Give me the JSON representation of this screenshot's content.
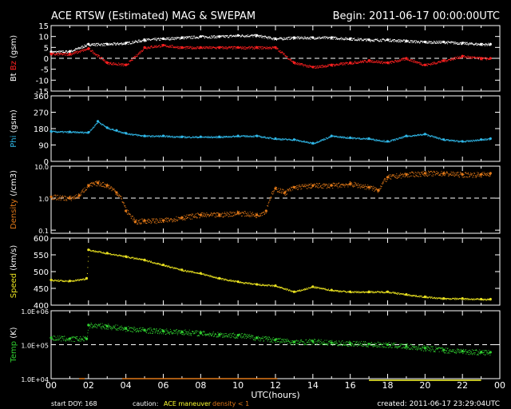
{
  "title": "ACE RTSW (Estimated) MAG & SWEPAM",
  "begin_label": "Begin: 2011-06-17 00:00:00UTC",
  "x_axis_label": "UTC(hours)",
  "footer": {
    "start_doy": "start DOY: 168",
    "caution_label": "caution:",
    "maneuver_label": "ACE maneuver",
    "density_label": "density < 1",
    "created": "created: 2011-06-17 23:29:04UTC"
  },
  "colors": {
    "bt": "#ffffff",
    "bz": "#ff2020",
    "phi": "#30b8e8",
    "density": "#e07818",
    "speed": "#e8e020",
    "temp": "#30d030",
    "maneuver": "#ffff30",
    "density_flag": "#e07818"
  },
  "chart_data": [
    {
      "type": "line",
      "ylabel_parts": [
        "Bt",
        "Bz",
        "(gsm)"
      ],
      "ylim": [
        -15,
        15
      ],
      "yticks": [
        "15",
        "10",
        "5",
        "0",
        "-5",
        "-10",
        "-15"
      ],
      "dashed_reference": 0,
      "xlim": [
        0,
        24
      ],
      "x": [
        0,
        1,
        2,
        3,
        4,
        5,
        6,
        7,
        8,
        9,
        10,
        11,
        12,
        13,
        14,
        15,
        16,
        17,
        18,
        19,
        20,
        21,
        22,
        23,
        23.5
      ],
      "series": [
        {
          "name": "Bt",
          "color_key": "bt",
          "values": [
            3,
            3.2,
            6.5,
            6.5,
            7,
            8.5,
            9,
            9.5,
            10,
            10,
            10.5,
            10.5,
            9,
            9.5,
            9.5,
            9.5,
            9,
            8.5,
            8.5,
            8,
            7.5,
            7.5,
            7,
            6.5,
            6.5
          ]
        },
        {
          "name": "Bz",
          "color_key": "bz",
          "values": [
            2,
            2,
            4.5,
            -2,
            -3,
            5,
            6,
            5,
            5,
            5,
            5,
            5,
            5,
            -2,
            -4,
            -3,
            -2,
            -1,
            -2,
            0,
            -3,
            -1,
            1,
            0,
            0
          ]
        }
      ]
    },
    {
      "type": "scatter",
      "ylabel_parts": [
        "Phi",
        "(gsm)"
      ],
      "ylim": [
        0,
        360
      ],
      "yticks": [
        "360",
        "270",
        "180",
        "90",
        "0"
      ],
      "xlim": [
        0,
        24
      ],
      "x": [
        0,
        1,
        2,
        2.5,
        3,
        3.5,
        4,
        5,
        6,
        7,
        8,
        9,
        10,
        11,
        12,
        13,
        14,
        15,
        16,
        17,
        18,
        19,
        20,
        21,
        22,
        23,
        23.5
      ],
      "series": [
        {
          "name": "Phi",
          "color_key": "phi",
          "values": [
            165,
            162,
            160,
            220,
            185,
            170,
            155,
            140,
            140,
            135,
            135,
            135,
            140,
            140,
            125,
            120,
            100,
            140,
            130,
            125,
            110,
            140,
            150,
            120,
            110,
            120,
            125
          ]
        }
      ]
    },
    {
      "type": "scatter",
      "ylabel_parts": [
        "Density",
        "(/cm3)"
      ],
      "log_scale": true,
      "ylim": [
        0.08,
        10
      ],
      "yticks": [
        "10.0",
        "1.0",
        "0.1"
      ],
      "dashed_reference": 1.0,
      "xlim": [
        0,
        24
      ],
      "x": [
        0,
        1,
        1.5,
        2,
        2.5,
        3,
        3.5,
        4,
        4.5,
        5,
        6,
        7,
        8,
        9,
        10,
        11,
        11.5,
        12,
        12.5,
        13,
        14,
        15,
        16,
        17,
        17.5,
        18,
        19,
        20,
        21,
        22,
        23,
        23.5
      ],
      "series": [
        {
          "name": "Density",
          "color_key": "density",
          "values": [
            1.1,
            1.0,
            1.2,
            2.5,
            3.0,
            2.5,
            1.5,
            0.4,
            0.18,
            0.2,
            0.2,
            0.25,
            0.3,
            0.3,
            0.35,
            0.3,
            0.4,
            2.0,
            1.5,
            2.2,
            2.5,
            2.5,
            2.8,
            2.2,
            1.8,
            4.5,
            5.5,
            6.0,
            6.0,
            5.5,
            5.5,
            6.0
          ]
        }
      ]
    },
    {
      "type": "scatter",
      "ylabel_parts": [
        "Speed",
        "(km/s)"
      ],
      "ylim": [
        400,
        600
      ],
      "yticks": [
        "600",
        "550",
        "500",
        "450",
        "400"
      ],
      "xlim": [
        0,
        24
      ],
      "x": [
        0,
        1,
        1.9,
        2,
        3,
        4,
        5,
        6,
        7,
        8,
        9,
        10,
        11,
        12,
        13,
        14,
        15,
        16,
        17,
        18,
        19,
        20,
        21,
        22,
        23,
        23.5
      ],
      "series": [
        {
          "name": "Speed",
          "color_key": "speed",
          "values": [
            475,
            472,
            480,
            565,
            555,
            545,
            535,
            520,
            505,
            495,
            480,
            470,
            462,
            458,
            440,
            455,
            445,
            440,
            440,
            440,
            432,
            425,
            420,
            420,
            418,
            418
          ]
        }
      ]
    },
    {
      "type": "scatter",
      "ylabel_parts": [
        "Temp",
        "(K)"
      ],
      "log_scale": true,
      "ylim": [
        10000,
        1000000
      ],
      "yticks": [
        "1.0E+06",
        "1.0E+05",
        "1.0E+04"
      ],
      "dashed_reference": 100000,
      "xlim": [
        0,
        24
      ],
      "x": [
        0,
        1,
        1.9,
        2,
        3,
        4,
        5,
        6,
        7,
        8,
        9,
        10,
        11,
        12,
        13,
        14,
        15,
        16,
        17,
        18,
        19,
        20,
        21,
        22,
        23,
        23.5
      ],
      "series": [
        {
          "name": "Temp",
          "color_key": "temp",
          "values": [
            160000,
            150000,
            150000,
            380000,
            350000,
            300000,
            270000,
            250000,
            240000,
            220000,
            200000,
            190000,
            160000,
            140000,
            120000,
            125000,
            115000,
            110000,
            105000,
            100000,
            90000,
            80000,
            70000,
            65000,
            60000,
            60000
          ]
        }
      ]
    }
  ],
  "x_axis": {
    "xlim": [
      0,
      24
    ],
    "tick_labels": [
      "00",
      "02",
      "04",
      "06",
      "08",
      "10",
      "12",
      "14",
      "16",
      "18",
      "20",
      "22",
      "00"
    ],
    "maneuver_segments": [
      [
        17,
        23
      ]
    ],
    "density_flag_segments": [
      [
        1.5,
        1.8
      ],
      [
        3.8,
        12.1
      ]
    ]
  }
}
